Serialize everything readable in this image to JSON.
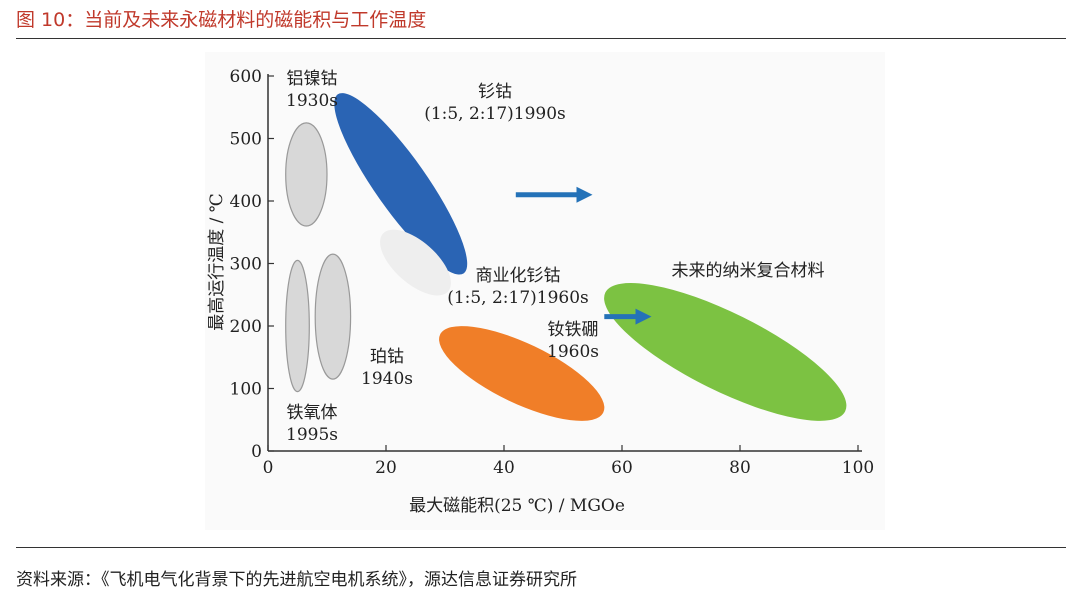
{
  "figure_title": "图 10：当前及未来永磁材料的磁能积与工作温度",
  "source_text": "资料来源：《飞机电气化背景下的先进航空电机系统》，源达信息证券研究所",
  "colors": {
    "title": "#c0392b",
    "smco_1990s": "#2a64b4",
    "ndfeb": "#f07e28",
    "future": "#7cc242",
    "gray_region": "#d8d8d8",
    "arrow": "#2472b8"
  },
  "chart_data": {
    "type": "scatter",
    "title": "",
    "xlabel": "最大磁能积(25 ℃) / MGOe",
    "ylabel": "最高运行温度 / ℃",
    "xlim": [
      0,
      100
    ],
    "ylim": [
      0,
      600
    ],
    "xticks": [
      0,
      20,
      40,
      60,
      80,
      100
    ],
    "yticks": [
      0,
      100,
      200,
      300,
      400,
      500,
      600
    ],
    "regions": [
      {
        "key": "alnico",
        "lines": [
          "铝镍钴",
          "1930s"
        ],
        "color": "#d8d8d8",
        "x_range": [
          3,
          10
        ],
        "y_range": [
          360,
          525
        ]
      },
      {
        "key": "ferrite",
        "lines": [
          "铁氧体",
          "1995s"
        ],
        "color": "#d8d8d8",
        "x_range": [
          3,
          7
        ],
        "y_range": [
          95,
          305
        ]
      },
      {
        "key": "ptco",
        "lines": [
          "珀钴",
          "1940s"
        ],
        "color": "#d8d8d8",
        "x_range": [
          8,
          14
        ],
        "y_range": [
          115,
          315
        ]
      },
      {
        "key": "smco_1990s",
        "lines": [
          "钐钴",
          "(1:5, 2:17)1990s"
        ],
        "color": "#2a64b4",
        "x_range": [
          10,
          32
        ],
        "y_range": [
          290,
          560
        ]
      },
      {
        "key": "smco_1960s",
        "lines": [
          "商业化钐钴",
          "(1:5, 2:17)1960s"
        ],
        "color": "#eeeeee",
        "x_range": [
          20,
          30
        ],
        "y_range": [
          260,
          345
        ]
      },
      {
        "key": "ndfeb",
        "lines": [
          "钕铁硼",
          "1960s"
        ],
        "color": "#f07e28",
        "x_range": [
          30,
          56
        ],
        "y_range": [
          55,
          195
        ]
      },
      {
        "key": "future",
        "lines": [
          "未来的纳米复合材料"
        ],
        "color": "#7cc242",
        "x_range": [
          58,
          97
        ],
        "y_range": [
          65,
          255
        ]
      }
    ],
    "arrows": [
      {
        "from": [
          42,
          410
        ],
        "to": [
          55,
          410
        ]
      },
      {
        "from": [
          57,
          215
        ],
        "to": [
          65,
          215
        ]
      }
    ]
  }
}
